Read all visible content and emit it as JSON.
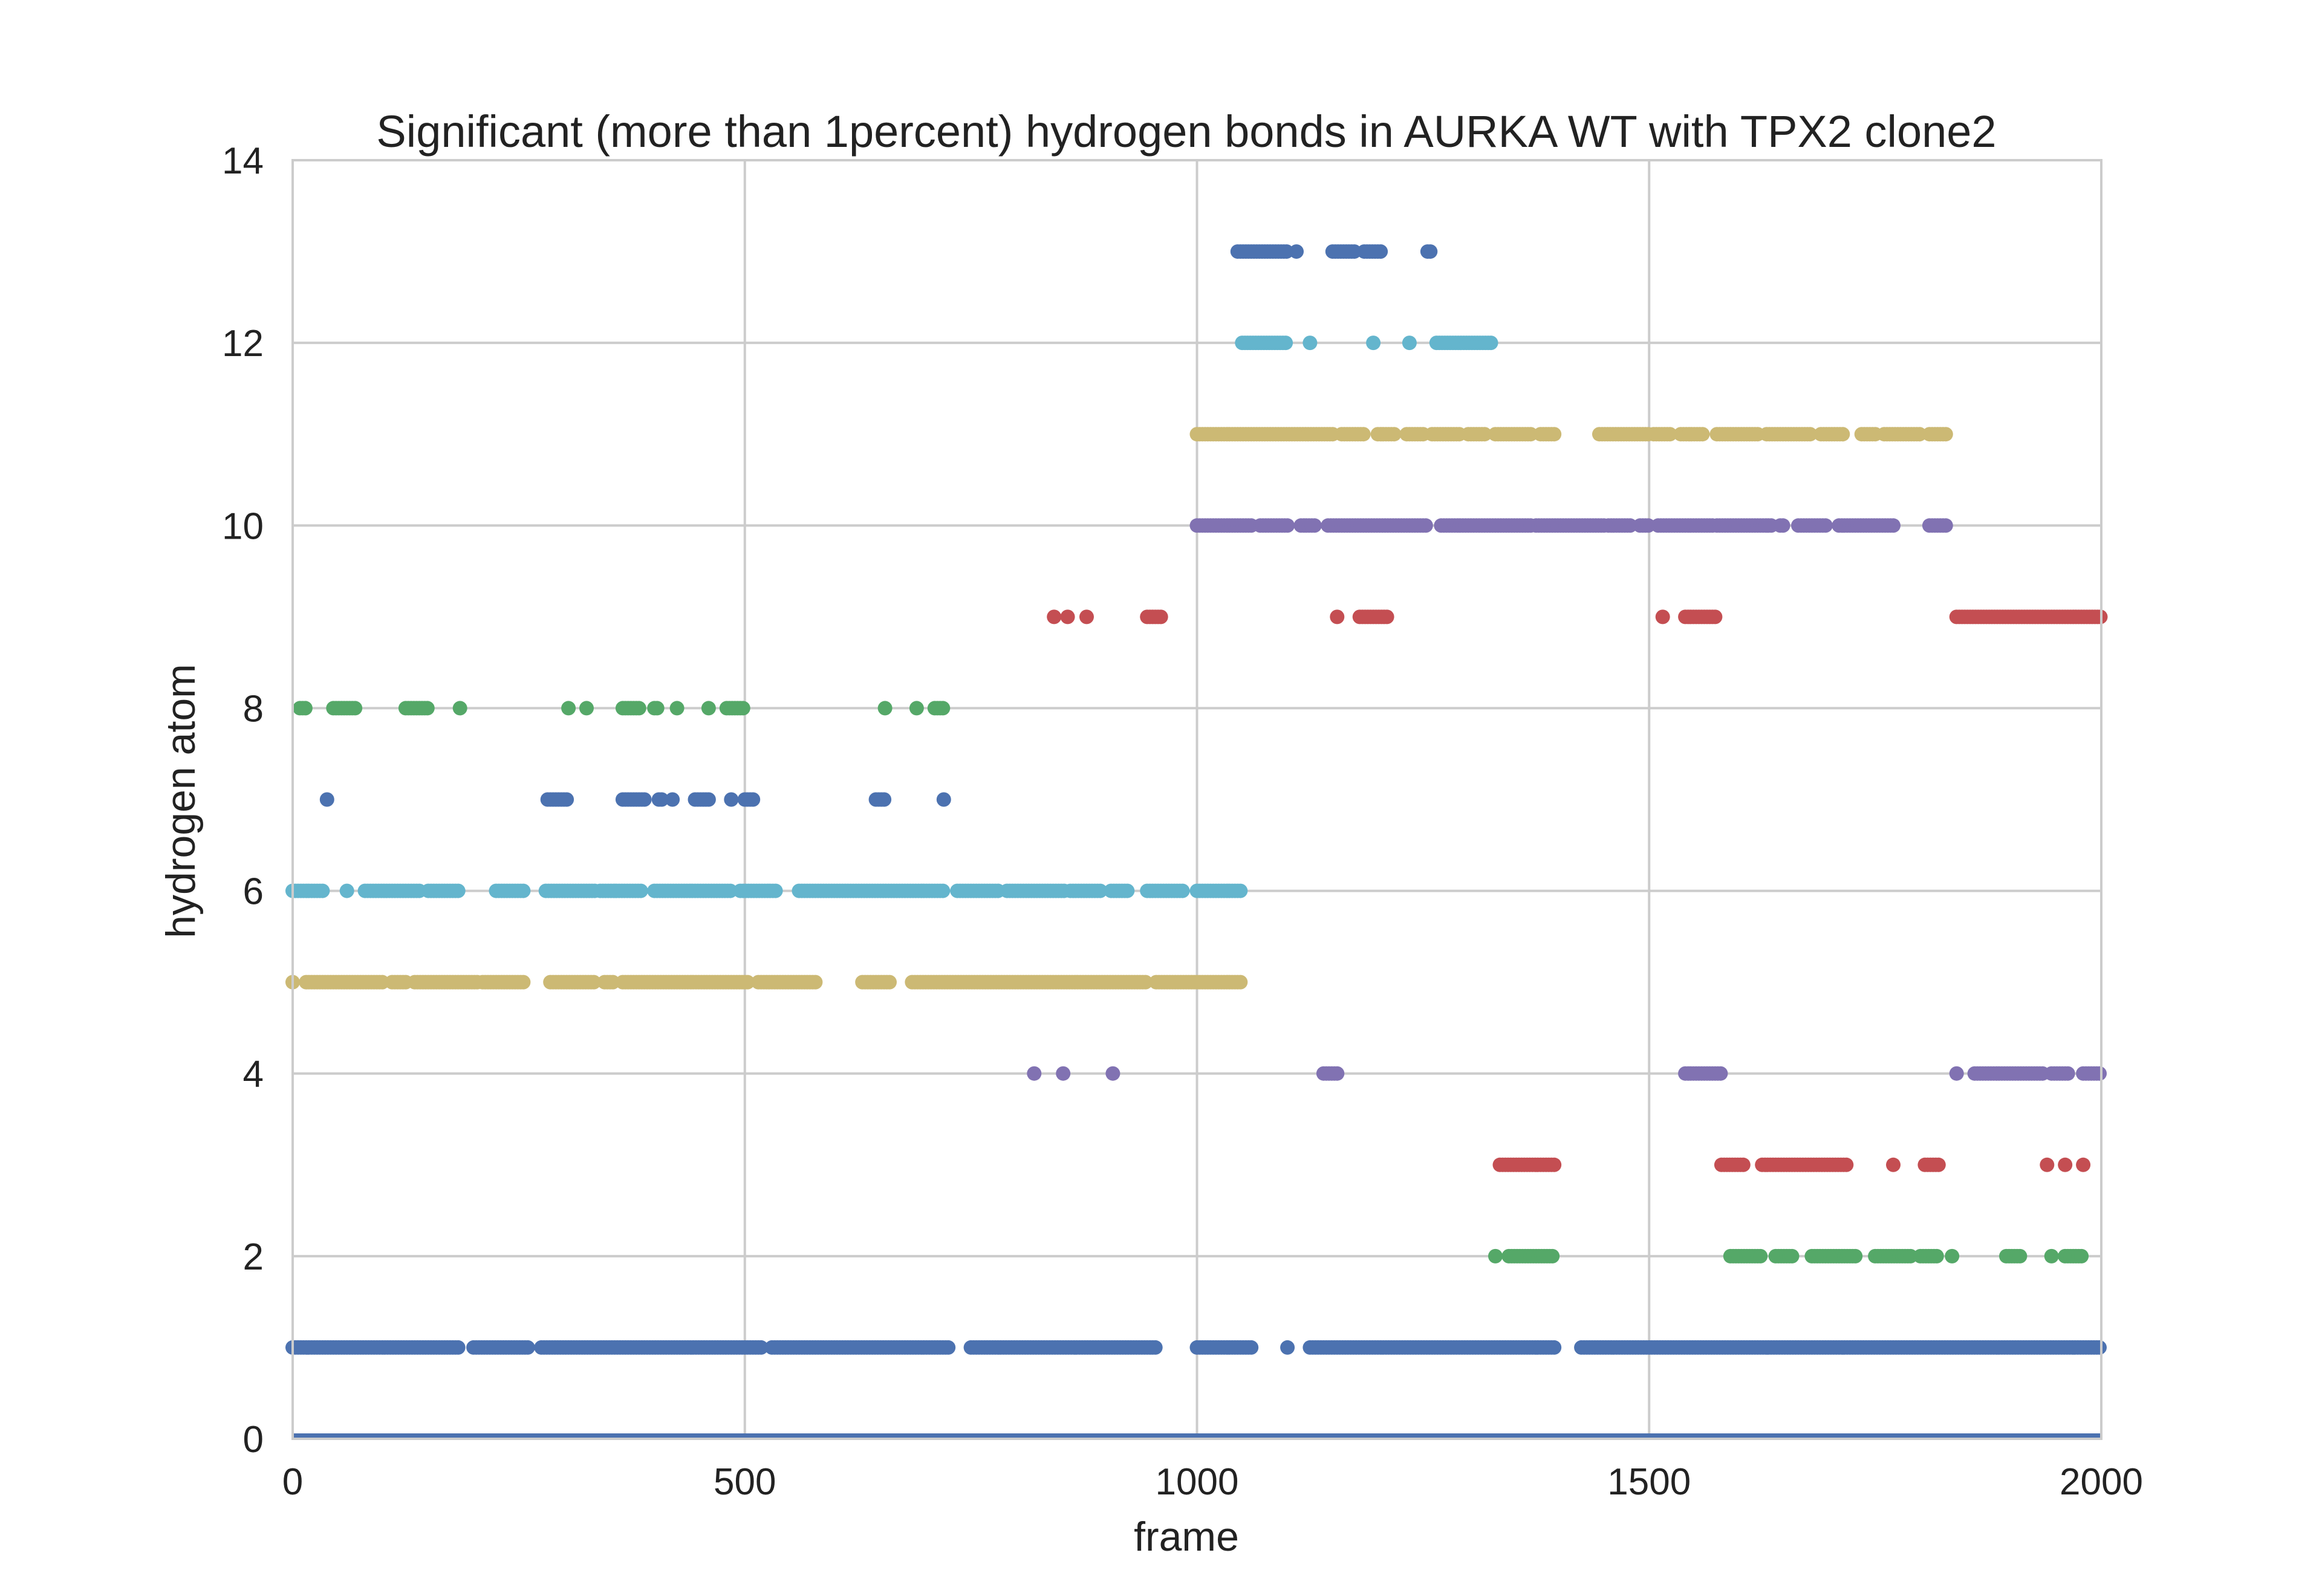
{
  "chart_data": {
    "type": "scatter",
    "title": "Significant (more than 1percent) hydrogen bonds in AURKA WT with TPX2 clone2",
    "xlabel": "frame",
    "ylabel": "hydrogen atom",
    "xlim": [
      0,
      2000
    ],
    "ylim": [
      0,
      14
    ],
    "xticks": [
      0,
      500,
      1000,
      1500,
      2000
    ],
    "yticks": [
      0,
      2,
      4,
      6,
      8,
      10,
      12,
      14
    ],
    "grid": true,
    "background": "#ffffff",
    "gridColor": "#cccccc",
    "baseline": {
      "y": 0,
      "color": "#4c72b0"
    },
    "series": [
      {
        "y": 1,
        "color": "#4c72b0",
        "runs": [
          [
            0,
            185
          ],
          [
            200,
            260
          ],
          [
            275,
            520
          ],
          [
            530,
            725
          ],
          [
            750,
            955
          ],
          [
            1000,
            1060
          ],
          [
            1100,
            1100
          ],
          [
            1125,
            1395
          ],
          [
            1425,
            2000
          ]
        ]
      },
      {
        "y": 2,
        "color": "#55a868",
        "runs": [
          [
            1345,
            1395
          ],
          [
            1330,
            1330
          ],
          [
            1590,
            1625
          ],
          [
            1640,
            1660
          ],
          [
            1680,
            1730
          ],
          [
            1750,
            1790
          ],
          [
            1800,
            1820
          ],
          [
            1835,
            1835
          ],
          [
            1895,
            1910
          ],
          [
            1945,
            1945
          ],
          [
            1960,
            1980
          ]
        ]
      },
      {
        "y": 3,
        "color": "#c44e52",
        "runs": [
          [
            1335,
            1395
          ],
          [
            1580,
            1605
          ],
          [
            1625,
            1720
          ],
          [
            1770,
            1770
          ],
          [
            1805,
            1820
          ],
          [
            1940,
            1940
          ],
          [
            1960,
            1960
          ],
          [
            1980,
            1980
          ]
        ]
      },
      {
        "y": 4,
        "color": "#8172b2",
        "runs": [
          [
            820,
            820
          ],
          [
            852,
            852
          ],
          [
            907,
            907
          ],
          [
            1140,
            1155
          ],
          [
            1540,
            1580
          ],
          [
            1840,
            1840
          ],
          [
            1860,
            1935
          ],
          [
            1945,
            1965
          ],
          [
            1980,
            2000
          ]
        ]
      },
      {
        "y": 5,
        "color": "#ccb974",
        "runs": [
          [
            0,
            0
          ],
          [
            15,
            100
          ],
          [
            110,
            125
          ],
          [
            135,
            205
          ],
          [
            210,
            255
          ],
          [
            285,
            335
          ],
          [
            345,
            355
          ],
          [
            365,
            505
          ],
          [
            515,
            580
          ],
          [
            630,
            660
          ],
          [
            685,
            945
          ],
          [
            955,
            1050
          ]
        ]
      },
      {
        "y": 6,
        "color": "#64b5cd",
        "runs": [
          [
            0,
            35
          ],
          [
            60,
            60
          ],
          [
            80,
            140
          ],
          [
            150,
            185
          ],
          [
            225,
            255
          ],
          [
            280,
            335
          ],
          [
            340,
            385
          ],
          [
            400,
            485
          ],
          [
            495,
            535
          ],
          [
            560,
            720
          ],
          [
            735,
            780
          ],
          [
            790,
            855
          ],
          [
            860,
            895
          ],
          [
            905,
            925
          ],
          [
            945,
            985
          ],
          [
            1000,
            1050
          ]
        ]
      },
      {
        "y": 7,
        "color": "#4c72b0",
        "runs": [
          [
            38,
            38
          ],
          [
            282,
            305
          ],
          [
            365,
            390
          ],
          [
            405,
            410
          ],
          [
            420,
            420
          ],
          [
            445,
            460
          ],
          [
            485,
            485
          ],
          [
            500,
            510
          ],
          [
            645,
            655
          ],
          [
            720,
            720
          ]
        ]
      },
      {
        "y": 8,
        "color": "#55a868",
        "runs": [
          [
            8,
            15
          ],
          [
            45,
            70
          ],
          [
            125,
            150
          ],
          [
            185,
            185
          ],
          [
            305,
            305
          ],
          [
            325,
            325
          ],
          [
            365,
            385
          ],
          [
            400,
            405
          ],
          [
            425,
            425
          ],
          [
            460,
            460
          ],
          [
            480,
            500
          ],
          [
            655,
            655
          ],
          [
            690,
            690
          ],
          [
            710,
            720
          ]
        ]
      },
      {
        "y": 9,
        "color": "#c44e52",
        "runs": [
          [
            842,
            842
          ],
          [
            857,
            857
          ],
          [
            878,
            878
          ],
          [
            945,
            960
          ],
          [
            1155,
            1155
          ],
          [
            1180,
            1210
          ],
          [
            1515,
            1515
          ],
          [
            1540,
            1575
          ],
          [
            1840,
            2000
          ]
        ]
      },
      {
        "y": 10,
        "color": "#8172b2",
        "runs": [
          [
            1000,
            1060
          ],
          [
            1070,
            1100
          ],
          [
            1115,
            1130
          ],
          [
            1145,
            1255
          ],
          [
            1270,
            1370
          ],
          [
            1375,
            1450
          ],
          [
            1455,
            1480
          ],
          [
            1490,
            1500
          ],
          [
            1510,
            1570
          ],
          [
            1575,
            1635
          ],
          [
            1645,
            1650
          ],
          [
            1665,
            1695
          ],
          [
            1710,
            1770
          ],
          [
            1810,
            1830
          ]
        ]
      },
      {
        "y": 11,
        "color": "#ccb974",
        "runs": [
          [
            1000,
            1150
          ],
          [
            1160,
            1185
          ],
          [
            1200,
            1220
          ],
          [
            1232,
            1250
          ],
          [
            1260,
            1290
          ],
          [
            1300,
            1320
          ],
          [
            1330,
            1370
          ],
          [
            1380,
            1395
          ],
          [
            1445,
            1500
          ],
          [
            1505,
            1525
          ],
          [
            1535,
            1560
          ],
          [
            1575,
            1620
          ],
          [
            1630,
            1680
          ],
          [
            1690,
            1715
          ],
          [
            1735,
            1750
          ],
          [
            1760,
            1800
          ],
          [
            1810,
            1830
          ]
        ]
      },
      {
        "y": 12,
        "color": "#64b5cd",
        "runs": [
          [
            1050,
            1100
          ],
          [
            1125,
            1125
          ],
          [
            1195,
            1195
          ],
          [
            1235,
            1235
          ],
          [
            1265,
            1325
          ]
        ]
      },
      {
        "y": 13,
        "color": "#4c72b0",
        "runs": [
          [
            1045,
            1100
          ],
          [
            1110,
            1110
          ],
          [
            1150,
            1175
          ],
          [
            1185,
            1205
          ],
          [
            1255,
            1260
          ]
        ]
      }
    ]
  }
}
